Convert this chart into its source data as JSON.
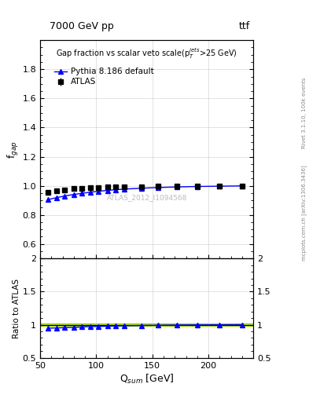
{
  "title_top": "7000 GeV pp",
  "title_top_right": "ttf",
  "plot_title": "Gap fraction vs scalar veto scale(p$_T^{jets}$>25 GeV)",
  "xlabel": "Q$_{sum}$ [GeV]",
  "ylabel_main": "f$_{gap}$",
  "ylabel_ratio": "Ratio to ATLAS",
  "right_label_top": "Rivet 3.1.10, 100k events",
  "right_label_bot": "mcplots.cern.ch [arXiv:1306.3436]",
  "watermark": "ATLAS_2012_I1094568",
  "atlas_x": [
    57,
    65,
    72,
    80,
    87,
    95,
    102,
    110,
    117,
    125,
    140,
    155,
    172,
    190,
    210,
    230
  ],
  "atlas_y": [
    0.955,
    0.967,
    0.972,
    0.98,
    0.982,
    0.985,
    0.988,
    0.99,
    0.992,
    0.993,
    0.995,
    0.996,
    0.997,
    0.998,
    0.999,
    0.999
  ],
  "atlas_yerr": [
    0.012,
    0.009,
    0.008,
    0.007,
    0.007,
    0.006,
    0.006,
    0.006,
    0.005,
    0.005,
    0.004,
    0.004,
    0.003,
    0.003,
    0.003,
    0.002
  ],
  "pythia_x": [
    57,
    65,
    72,
    80,
    87,
    95,
    102,
    110,
    117,
    125,
    140,
    155,
    172,
    190,
    210,
    230
  ],
  "pythia_y": [
    0.905,
    0.919,
    0.93,
    0.94,
    0.948,
    0.956,
    0.962,
    0.968,
    0.973,
    0.977,
    0.983,
    0.988,
    0.992,
    0.995,
    0.997,
    0.999
  ],
  "ratio_pythia_x": [
    57,
    65,
    72,
    80,
    87,
    95,
    102,
    110,
    117,
    125,
    140,
    155,
    172,
    190,
    210,
    230
  ],
  "ratio_pythia_y": [
    0.948,
    0.95,
    0.956,
    0.959,
    0.966,
    0.971,
    0.974,
    0.978,
    0.981,
    0.984,
    0.988,
    0.992,
    0.995,
    0.997,
    0.998,
    1.0
  ],
  "xlim": [
    50,
    240
  ],
  "ylim_main": [
    0.5,
    2.0
  ],
  "ylim_ratio": [
    0.5,
    2.0
  ],
  "yticks_main": [
    0.6,
    0.8,
    1.0,
    1.2,
    1.4,
    1.6,
    1.8
  ],
  "yticks_ratio": [
    0.5,
    1.0,
    1.5,
    2.0
  ],
  "xticks": [
    50,
    100,
    150,
    200
  ],
  "atlas_color": "black",
  "pythia_color": "blue",
  "ratio_band_color": "#99cc00",
  "background_color": "white"
}
